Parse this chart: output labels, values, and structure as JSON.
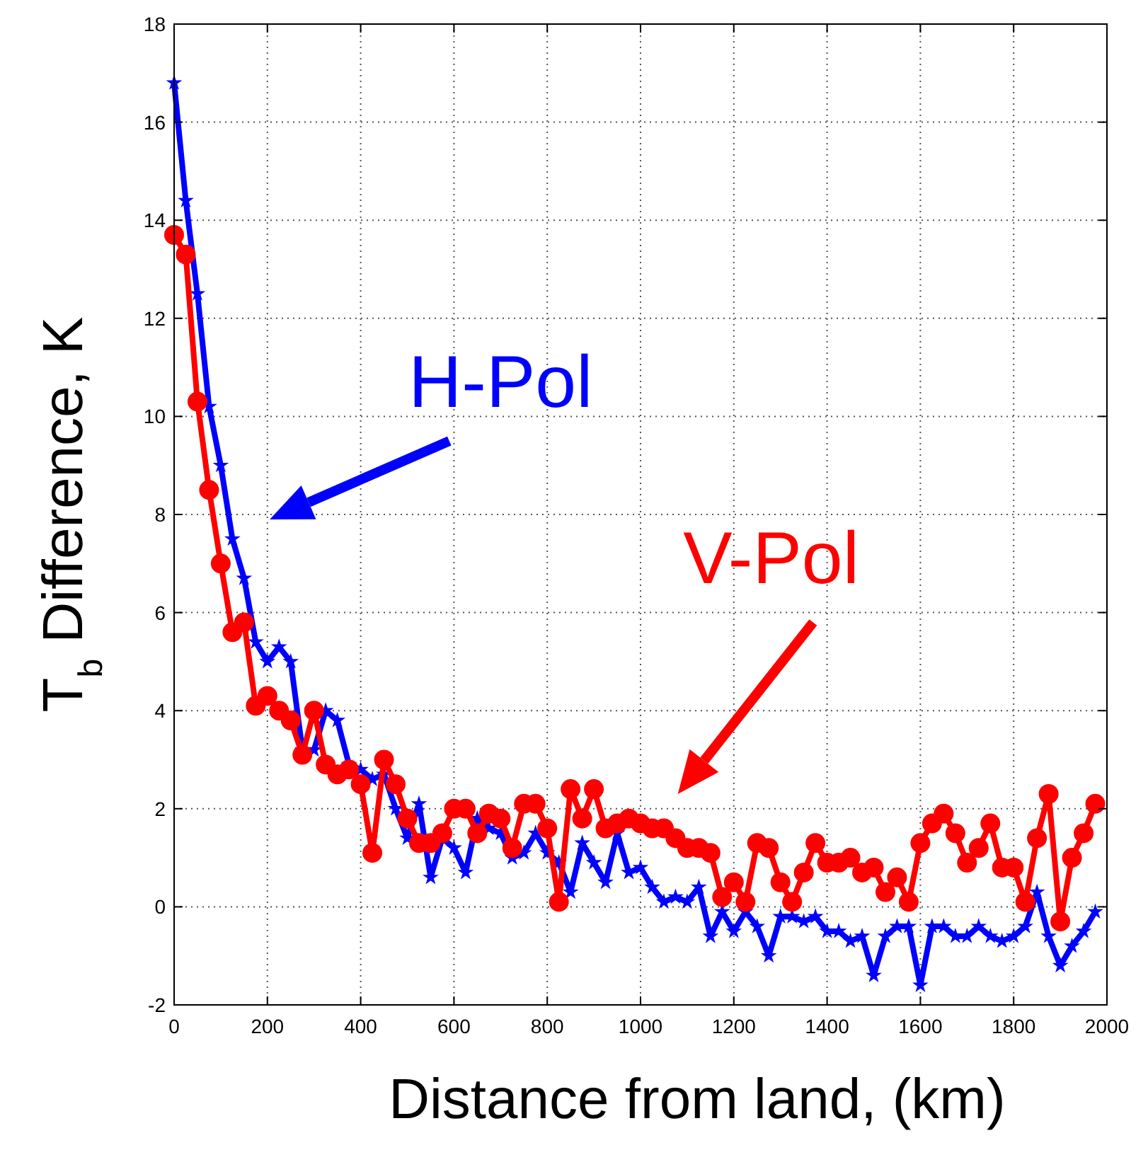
{
  "chart_data": {
    "type": "line",
    "xlabel": "Distance from land, (km)",
    "ylabel": "T$_{b}$ Difference, K",
    "x": [
      0,
      25,
      50,
      75,
      100,
      125,
      150,
      175,
      200,
      225,
      250,
      275,
      300,
      325,
      350,
      375,
      400,
      425,
      450,
      475,
      500,
      525,
      550,
      575,
      600,
      625,
      650,
      675,
      700,
      725,
      750,
      775,
      800,
      825,
      850,
      875,
      900,
      925,
      950,
      975,
      1000,
      1025,
      1050,
      1075,
      1100,
      1125,
      1150,
      1175,
      1200,
      1225,
      1250,
      1275,
      1300,
      1325,
      1350,
      1375,
      1400,
      1425,
      1450,
      1475,
      1500,
      1525,
      1550,
      1575,
      1600,
      1625,
      1650,
      1675,
      1700,
      1725,
      1750,
      1775,
      1800,
      1825,
      1850,
      1875,
      1900,
      1925,
      1950,
      1975
    ],
    "series": [
      {
        "name": "H-Pol",
        "color": "#0000ff",
        "marker": "star",
        "values": [
          16.8,
          14.4,
          12.5,
          10.2,
          9.0,
          7.5,
          6.7,
          5.4,
          5.0,
          5.3,
          5.0,
          3.2,
          3.2,
          4.0,
          3.8,
          2.9,
          2.8,
          2.6,
          2.7,
          2.0,
          1.4,
          2.1,
          0.6,
          1.4,
          1.2,
          0.7,
          1.8,
          1.6,
          1.5,
          1.0,
          1.1,
          1.5,
          1.1,
          0.9,
          0.3,
          1.3,
          0.9,
          0.5,
          1.5,
          0.7,
          0.8,
          0.4,
          0.1,
          0.2,
          0.1,
          0.4,
          -0.6,
          -0.1,
          -0.5,
          -0.1,
          -0.4,
          -1.0,
          -0.2,
          -0.2,
          -0.3,
          -0.2,
          -0.5,
          -0.5,
          -0.7,
          -0.6,
          -1.4,
          -0.6,
          -0.4,
          -0.4,
          -1.6,
          -0.4,
          -0.4,
          -0.6,
          -0.6,
          -0.4,
          -0.6,
          -0.7,
          -0.6,
          -0.4,
          0.3,
          -0.6,
          -1.2,
          -0.8,
          -0.5,
          -0.1
        ]
      },
      {
        "name": "V-Pol",
        "color": "#ff0000",
        "marker": "circle",
        "values": [
          13.7,
          13.3,
          10.3,
          8.5,
          7.0,
          5.6,
          5.8,
          4.1,
          4.3,
          4.0,
          3.8,
          3.1,
          4.0,
          2.9,
          2.7,
          2.8,
          2.5,
          1.1,
          3.0,
          2.5,
          1.8,
          1.3,
          1.3,
          1.5,
          2.0,
          2.0,
          1.5,
          1.9,
          1.8,
          1.2,
          2.1,
          2.1,
          1.6,
          0.1,
          2.4,
          1.8,
          2.4,
          1.6,
          1.7,
          1.8,
          1.7,
          1.6,
          1.6,
          1.4,
          1.2,
          1.2,
          1.1,
          0.2,
          0.5,
          0.1,
          1.3,
          1.2,
          0.5,
          0.1,
          0.7,
          1.3,
          0.9,
          0.9,
          1.0,
          0.7,
          0.8,
          0.3,
          0.6,
          0.1,
          1.3,
          1.7,
          1.9,
          1.5,
          0.9,
          1.2,
          1.7,
          0.8,
          0.8,
          0.1,
          1.4,
          2.3,
          -0.3,
          1.0,
          1.5,
          2.1
        ]
      }
    ],
    "xlim": [
      0,
      2000
    ],
    "xticks": [
      0,
      200,
      400,
      600,
      800,
      1000,
      1200,
      1400,
      1600,
      1800,
      2000
    ],
    "ylim": [
      -2,
      18
    ],
    "yticks": [
      -2,
      0,
      2,
      4,
      6,
      8,
      10,
      12,
      14,
      16,
      18
    ],
    "grid": true,
    "line_style": "solid"
  }
}
